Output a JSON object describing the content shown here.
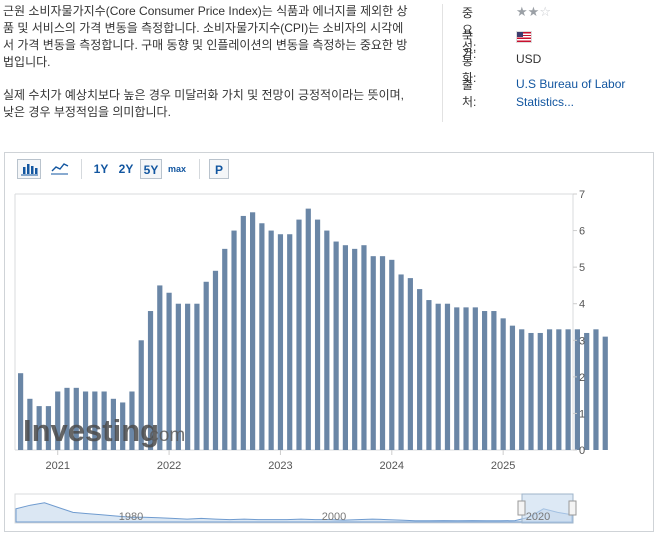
{
  "description": {
    "paragraph1": "근원 소비자물가지수(Core Consumer Price Index)는 식품과 에너지를 제외한 상품 및 서비스의 가격 변동을 측정합니다. 소비자물가지수(CPI)는 소비자의 시각에서 가격 변동을 측정합니다. 구매 동향 및 인플레이션의 변동을 측정하는 중요한 방법입니다.",
    "paragraph2": "실제 수치가 예상치보다 높은 경우 미달러화 가치 및 전망이 긍정적이라는 뜻이며, 낮은 경우 부정적임을 의미합니다."
  },
  "meta": {
    "importance_label": "중요성:",
    "importance_stars": 2,
    "importance_max": 3,
    "country_label": "국가:",
    "country_flag": "us-flag-icon",
    "currency_label": "통화:",
    "currency_value": "USD",
    "source_label": "출처:",
    "source_value_line1": "U.S Bureau of Labor",
    "source_value_line2": "Statistics..."
  },
  "toolbar": {
    "icons": [
      "bar-chart-icon",
      "line-chart-icon"
    ],
    "ranges": [
      "1Y",
      "2Y",
      "5Y",
      "max"
    ],
    "active_range": "5Y",
    "p_label": "P"
  },
  "watermark": {
    "brand": "Investing",
    "suffix": ".com"
  },
  "colors": {
    "bar": "#6a86a6",
    "navigator_fill": "#dbe7f3",
    "navigator_line": "#6f9bcf",
    "link": "#1256a0"
  },
  "chart_data": {
    "type": "bar",
    "x_start": "2020-09",
    "x_end": "2025-04",
    "ylim": [
      0,
      7
    ],
    "yticks": [
      0,
      1,
      2,
      3,
      4,
      5,
      6,
      7
    ],
    "x_tick_labels": [
      "2021",
      "2022",
      "2023",
      "2024",
      "2025"
    ],
    "grid": false,
    "legend": "none",
    "series": [
      {
        "values": [
          2.1,
          1.4,
          1.2,
          1.2,
          1.6,
          1.7,
          1.7,
          1.6,
          1.6,
          1.6,
          1.4,
          1.3,
          1.6,
          3.0,
          3.8,
          4.5,
          4.3,
          4.0,
          4.0,
          4.0,
          4.6,
          4.9,
          5.5,
          6.0,
          6.4,
          6.5,
          6.2,
          6.0,
          5.9,
          5.9,
          6.3,
          6.6,
          6.3,
          6.0,
          5.7,
          5.6,
          5.5,
          5.6,
          5.3,
          5.3,
          5.2,
          4.8,
          4.7,
          4.4,
          4.1,
          4.0,
          4.0,
          3.9,
          3.9,
          3.9,
          3.8,
          3.8,
          3.6,
          3.4,
          3.3,
          3.2,
          3.2,
          3.3,
          3.3,
          3.3,
          3.3,
          3.2,
          3.3,
          3.1
        ]
      }
    ],
    "navigator": {
      "x_labels": [
        "1980",
        "2000",
        "2020"
      ]
    }
  }
}
